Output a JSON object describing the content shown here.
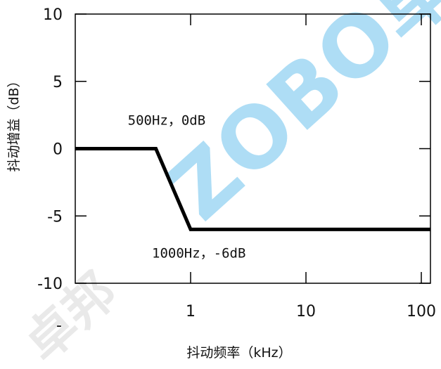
{
  "chart_data": {
    "type": "line",
    "xlabel": "抖动频率（kHz）",
    "ylabel": "抖动增益（dB）",
    "x_scale": "log",
    "xlim": [
      0.1,
      120
    ],
    "ylim": [
      -10,
      10
    ],
    "x_ticks": [
      {
        "value": 1,
        "label": "1"
      },
      {
        "value": 10,
        "label": "10"
      },
      {
        "value": 100,
        "label": "100"
      }
    ],
    "y_ticks": [
      {
        "value": 10,
        "label": "10"
      },
      {
        "value": 5,
        "label": "5"
      },
      {
        "value": 0,
        "label": "0"
      },
      {
        "value": -5,
        "label": "-5"
      },
      {
        "value": -10,
        "label": "-10"
      }
    ],
    "grid": false,
    "series": [
      {
        "x": [
          0.1,
          0.5,
          1,
          120
        ],
        "y": [
          0,
          0,
          -6,
          -6
        ]
      }
    ],
    "annotations": [
      {
        "text": "500Hz，0dB",
        "x": 0.5,
        "y": 0
      },
      {
        "text": "1000Hz，-6dB",
        "x": 1,
        "y": -6
      }
    ],
    "line_color": "#000000"
  },
  "watermark": {
    "text": "ZOBO卓邦",
    "lower_text": "卓邦",
    "color": "#6cc3ee",
    "color_gray": "#d4d4d4"
  }
}
